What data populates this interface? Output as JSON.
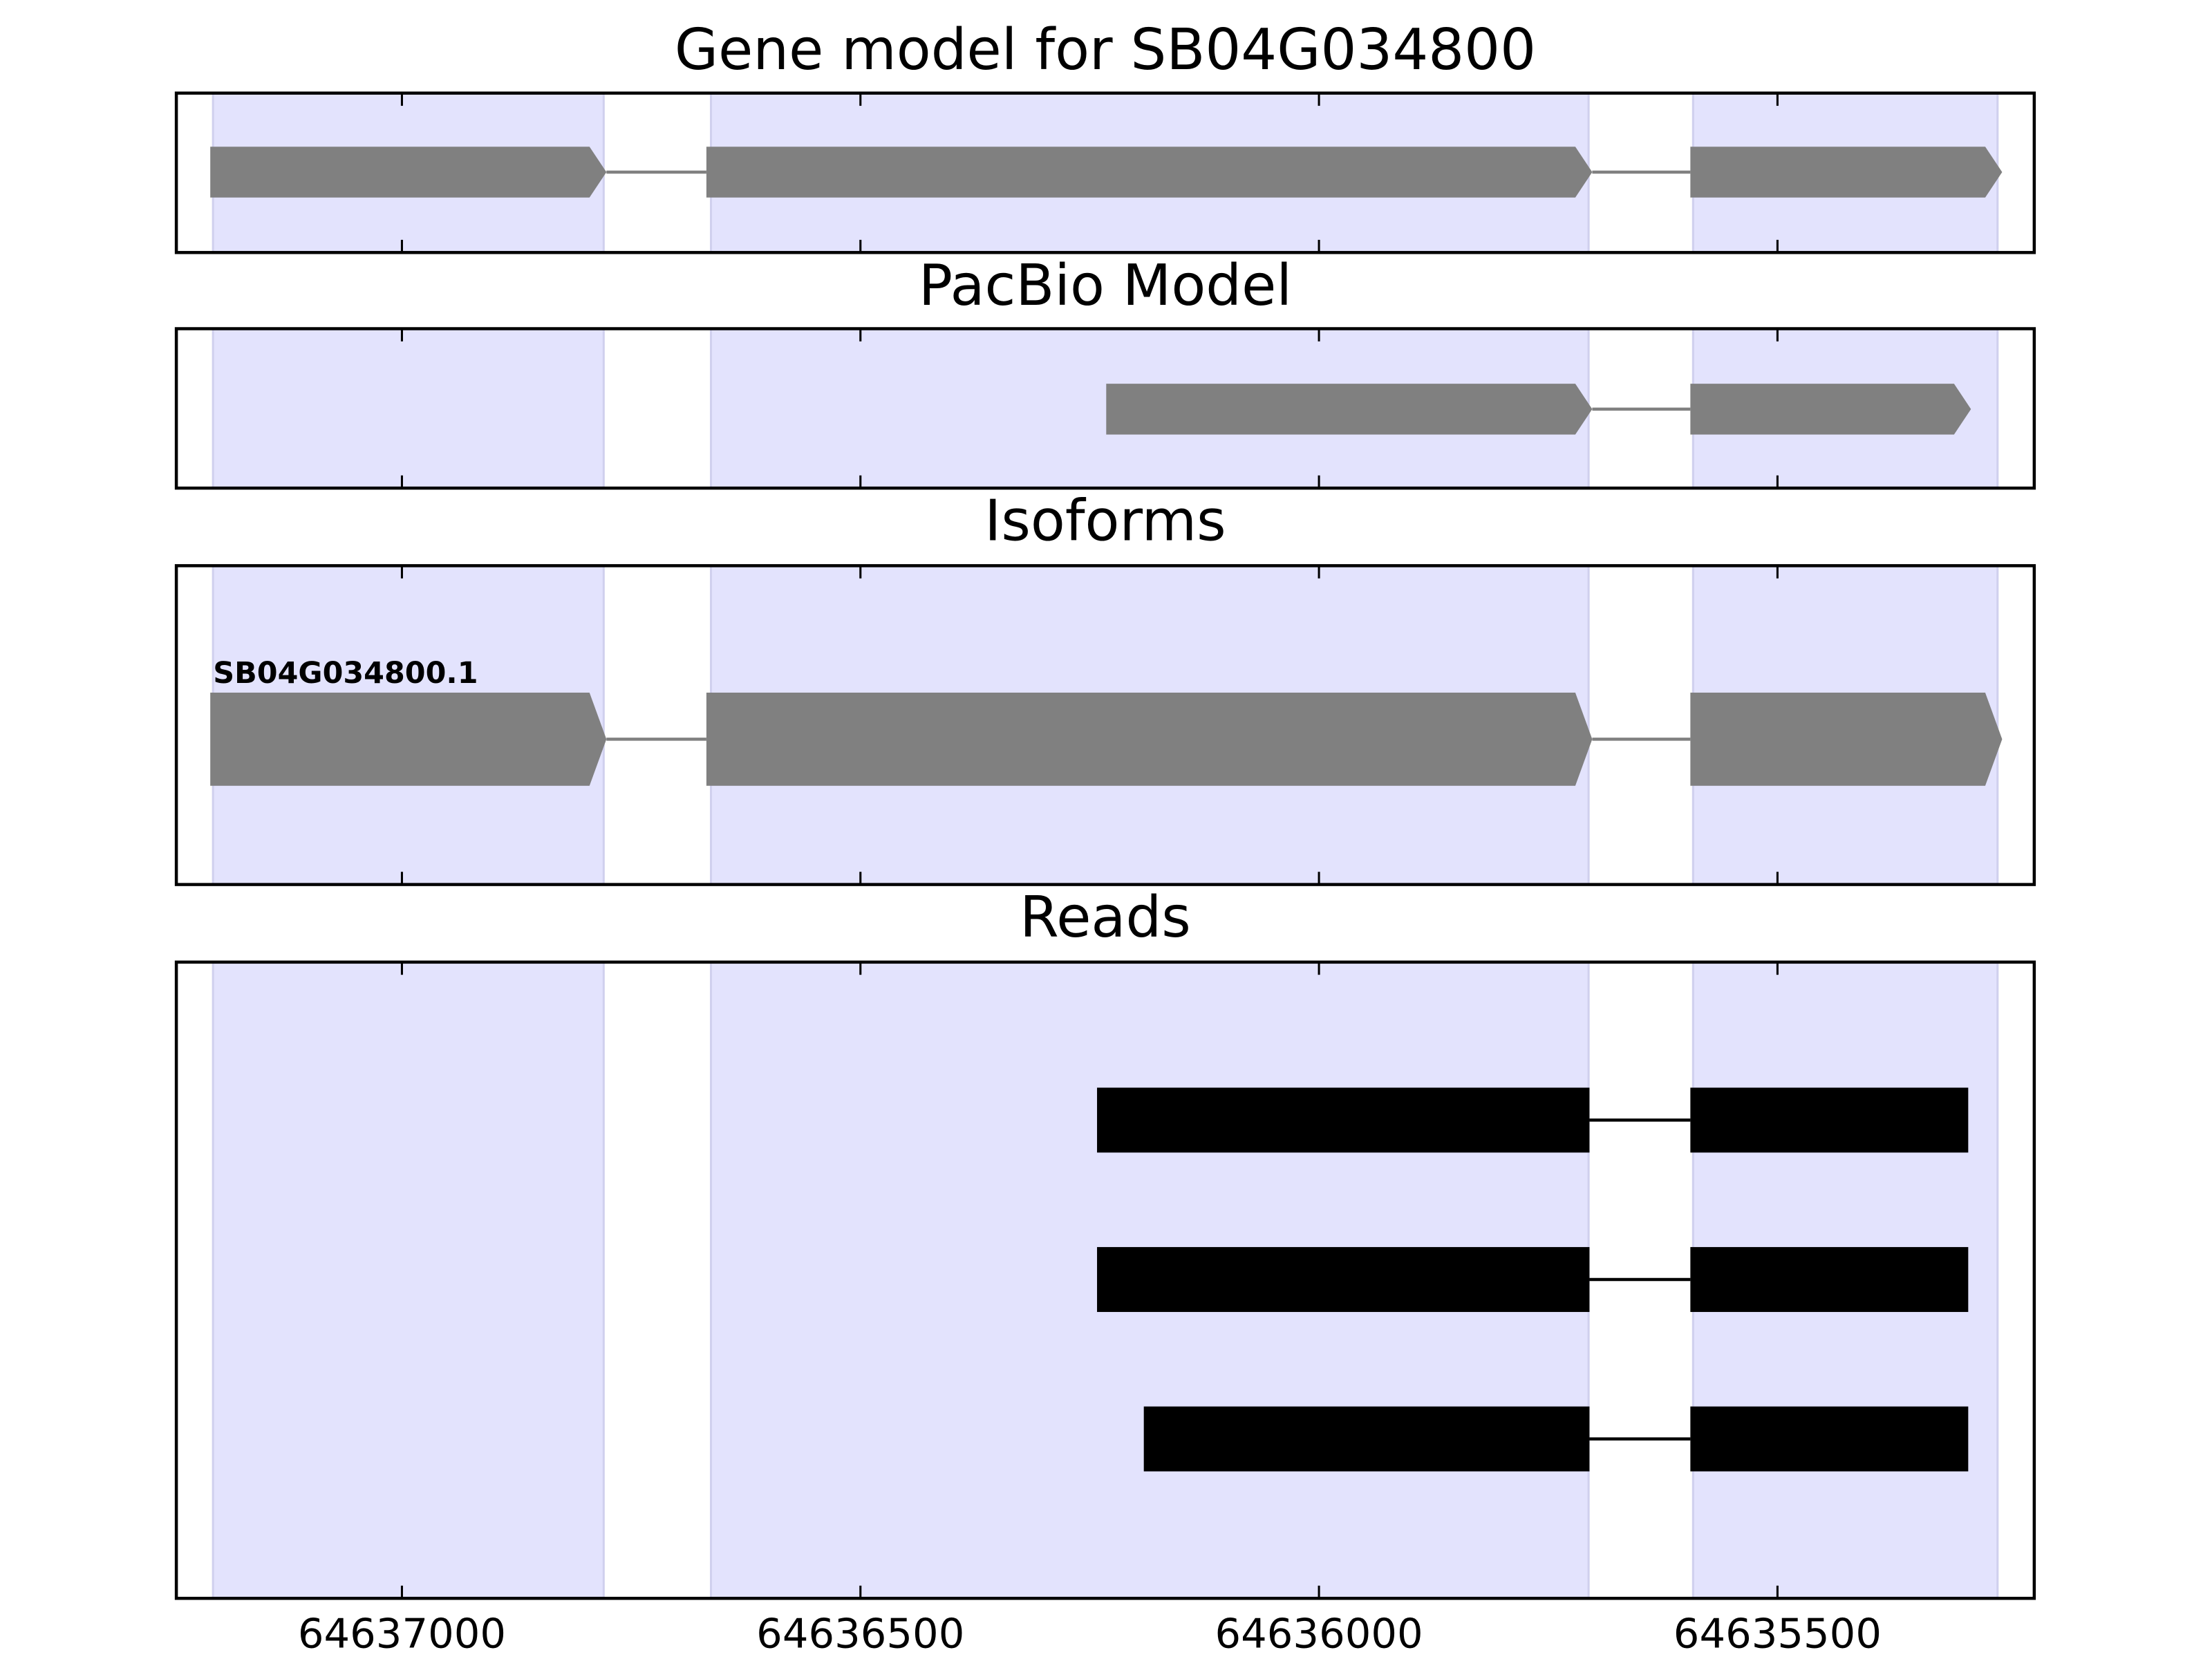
{
  "chart_data": {
    "type": "gene-tracks",
    "xlim": [
      64637246,
      64635220
    ],
    "xticks": [
      64637000,
      64636500,
      64636000,
      64635500
    ],
    "region_color": "#e3e3fd",
    "exon_regions": [
      [
        64637206,
        64636780
      ],
      [
        64636663,
        64635706
      ],
      [
        64635592,
        64635260
      ]
    ],
    "panels": [
      {
        "title": "Gene model for SB04G034800",
        "style": "arrow",
        "color": "#808080",
        "tracks": [
          {
            "exons": [
              [
                64637209,
                64636777
              ],
              [
                64636668,
                64635702
              ],
              [
                64635595,
                64635255
              ]
            ]
          }
        ]
      },
      {
        "title": "PacBio Model",
        "style": "arrow",
        "color": "#808080",
        "tracks": [
          {
            "exons": [
              [
                64636232,
                64635702
              ],
              [
                64635595,
                64635289
              ]
            ]
          }
        ]
      },
      {
        "title": "Isoforms",
        "style": "arrow",
        "color": "#808080",
        "tracks": [
          {
            "label": "SB04G034800.1",
            "exons": [
              [
                64637209,
                64636777
              ],
              [
                64636668,
                64635702
              ],
              [
                64635595,
                64635255
              ]
            ]
          }
        ]
      },
      {
        "title": "Reads",
        "style": "box",
        "color": "#000000",
        "tracks": [
          {
            "exons": [
              [
                64636242,
                64635705
              ],
              [
                64635595,
                64635292
              ]
            ]
          },
          {
            "exons": [
              [
                64636242,
                64635705
              ],
              [
                64635595,
                64635292
              ]
            ]
          },
          {
            "exons": [
              [
                64636191,
                64635705
              ],
              [
                64635595,
                64635292
              ]
            ]
          }
        ]
      }
    ]
  }
}
